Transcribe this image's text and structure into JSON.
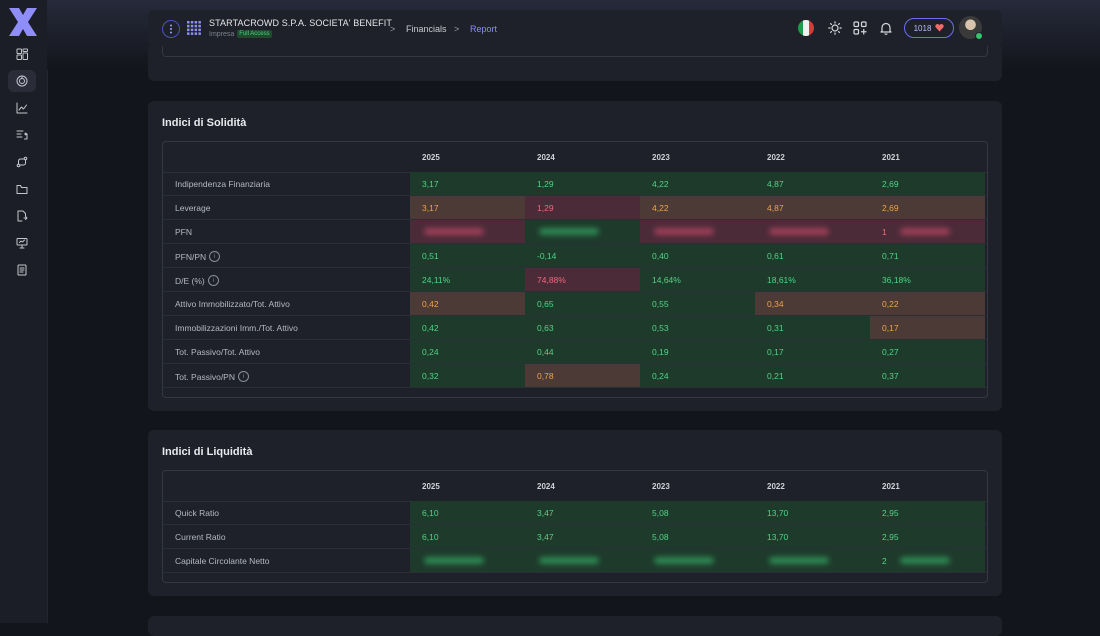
{
  "app": {
    "logo": "X"
  },
  "sidebar": {
    "items": [
      {
        "icon": "dashboard-icon"
      },
      {
        "icon": "target-icon",
        "active": true
      },
      {
        "icon": "chart-line-icon"
      },
      {
        "icon": "list-flow-icon"
      },
      {
        "icon": "route-icon"
      },
      {
        "icon": "folder-icon"
      },
      {
        "icon": "document-share-icon"
      },
      {
        "icon": "presentation-icon"
      },
      {
        "icon": "report-list-icon"
      }
    ]
  },
  "header": {
    "company_name": "STARTACROWD S.P.A. SOCIETA' BENEFIT",
    "company_type": "Impresa",
    "access_badge": "Full Access",
    "breadcrumb": [
      {
        "label": "Financials"
      },
      {
        "label": "Report"
      }
    ],
    "breadcrumb_sep": ">",
    "credits": "1018"
  },
  "years": [
    "2025",
    "2024",
    "2023",
    "2022",
    "2021"
  ],
  "solidita": {
    "title": "Indici di Solidità",
    "rows": [
      {
        "label": "Indipendenza Finanziaria",
        "info": false,
        "cells": [
          {
            "v": "3,17",
            "c": "g"
          },
          {
            "v": "1,29",
            "c": "g"
          },
          {
            "v": "4,22",
            "c": "g"
          },
          {
            "v": "4,87",
            "c": "g"
          },
          {
            "v": "2,69",
            "c": "g"
          }
        ]
      },
      {
        "label": "Leverage",
        "info": false,
        "cells": [
          {
            "v": "3,17",
            "c": "o"
          },
          {
            "v": "1,29",
            "c": "r"
          },
          {
            "v": "4,22",
            "c": "o"
          },
          {
            "v": "4,87",
            "c": "o"
          },
          {
            "v": "2,69",
            "c": "o"
          }
        ]
      },
      {
        "label": "PFN",
        "info": false,
        "cells": [
          {
            "v": "",
            "c": "r",
            "blur": "red"
          },
          {
            "v": "",
            "c": "g",
            "blur": "green"
          },
          {
            "v": "",
            "c": "r",
            "blur": "red"
          },
          {
            "v": "",
            "c": "r",
            "blur": "red"
          },
          {
            "v": "1",
            "c": "r",
            "blur": "red"
          }
        ]
      },
      {
        "label": "PFN/PN",
        "info": true,
        "cells": [
          {
            "v": "0,51",
            "c": "g"
          },
          {
            "v": "-0,14",
            "c": "g"
          },
          {
            "v": "0,40",
            "c": "g"
          },
          {
            "v": "0,61",
            "c": "g"
          },
          {
            "v": "0,71",
            "c": "g"
          }
        ]
      },
      {
        "label": "D/E (%)",
        "info": true,
        "cells": [
          {
            "v": "24,11%",
            "c": "g"
          },
          {
            "v": "74,88%",
            "c": "r"
          },
          {
            "v": "14,64%",
            "c": "g"
          },
          {
            "v": "18,61%",
            "c": "g"
          },
          {
            "v": "36,18%",
            "c": "g"
          }
        ]
      },
      {
        "label": "Attivo Immobilizzato/Tot. Attivo",
        "info": false,
        "cells": [
          {
            "v": "0,42",
            "c": "o"
          },
          {
            "v": "0,65",
            "c": "g"
          },
          {
            "v": "0,55",
            "c": "g"
          },
          {
            "v": "0,34",
            "c": "o"
          },
          {
            "v": "0,22",
            "c": "o"
          }
        ]
      },
      {
        "label": "Immobilizzazioni Imm./Tot. Attivo",
        "info": false,
        "cells": [
          {
            "v": "0,42",
            "c": "g"
          },
          {
            "v": "0,63",
            "c": "g"
          },
          {
            "v": "0,53",
            "c": "g"
          },
          {
            "v": "0,31",
            "c": "g"
          },
          {
            "v": "0,17",
            "c": "o"
          }
        ]
      },
      {
        "label": "Tot. Passivo/Tot. Attivo",
        "info": false,
        "cells": [
          {
            "v": "0,24",
            "c": "g"
          },
          {
            "v": "0,44",
            "c": "g"
          },
          {
            "v": "0,19",
            "c": "g"
          },
          {
            "v": "0,17",
            "c": "g"
          },
          {
            "v": "0,27",
            "c": "g"
          }
        ]
      },
      {
        "label": "Tot. Passivo/PN",
        "info": true,
        "cells": [
          {
            "v": "0,32",
            "c": "g"
          },
          {
            "v": "0,78",
            "c": "o"
          },
          {
            "v": "0,24",
            "c": "g"
          },
          {
            "v": "0,21",
            "c": "g"
          },
          {
            "v": "0,37",
            "c": "g"
          }
        ]
      }
    ]
  },
  "liquidita": {
    "title": "Indici di Liquidità",
    "rows": [
      {
        "label": "Quick Ratio",
        "info": false,
        "cells": [
          {
            "v": "6,10",
            "c": "g"
          },
          {
            "v": "3,47",
            "c": "g"
          },
          {
            "v": "5,08",
            "c": "g"
          },
          {
            "v": "13,70",
            "c": "g"
          },
          {
            "v": "2,95",
            "c": "g"
          }
        ]
      },
      {
        "label": "Current Ratio",
        "info": false,
        "cells": [
          {
            "v": "6,10",
            "c": "g"
          },
          {
            "v": "3,47",
            "c": "g"
          },
          {
            "v": "5,08",
            "c": "g"
          },
          {
            "v": "13,70",
            "c": "g"
          },
          {
            "v": "2,95",
            "c": "g"
          }
        ]
      },
      {
        "label": "Capitale Circolante Netto",
        "info": false,
        "cells": [
          {
            "v": "",
            "c": "g",
            "blur": "green"
          },
          {
            "v": "",
            "c": "g",
            "blur": "green"
          },
          {
            "v": "",
            "c": "g",
            "blur": "green"
          },
          {
            "v": "",
            "c": "g",
            "blur": "green"
          },
          {
            "v": "2",
            "c": "g",
            "blur": "green"
          }
        ]
      }
    ]
  }
}
